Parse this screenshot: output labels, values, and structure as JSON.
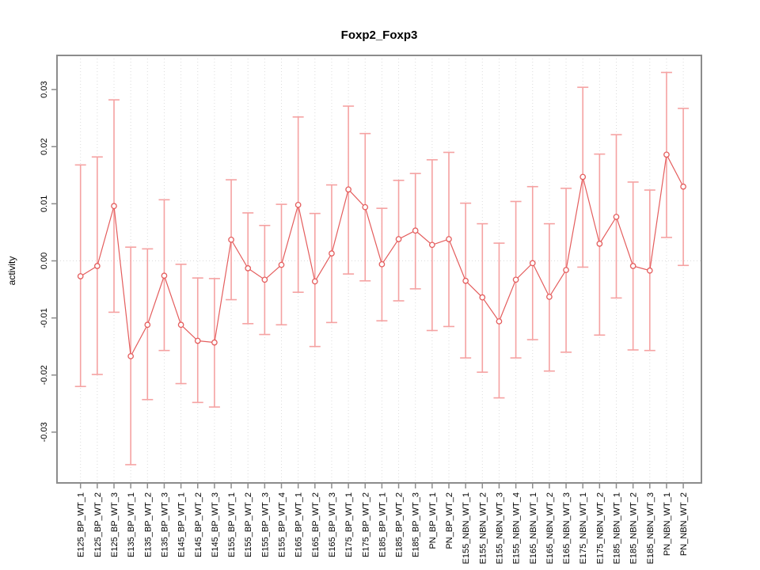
{
  "chart_data": {
    "type": "scatter",
    "title": "Foxp2_Foxp3",
    "xlabel": "",
    "ylabel": "activity",
    "legend_position": "none",
    "marker": "open-circle",
    "grid": {
      "vertical_dotted_per_category": true,
      "horizontal_dotted_zero_line": true,
      "frame_box": true
    },
    "categories": [
      "E125_BP_WT_1",
      "E125_BP_WT_2",
      "E125_BP_WT_3",
      "E135_BP_WT_1",
      "E135_BP_WT_2",
      "E135_BP_WT_3",
      "E145_BP_WT_1",
      "E145_BP_WT_2",
      "E145_BP_WT_3",
      "E155_BP_WT_1",
      "E155_BP_WT_2",
      "E155_BP_WT_3",
      "E155_BP_WT_4",
      "E165_BP_WT_1",
      "E165_BP_WT_2",
      "E165_BP_WT_3",
      "E175_BP_WT_1",
      "E175_BP_WT_2",
      "E185_BP_WT_1",
      "E185_BP_WT_2",
      "E185_BP_WT_3",
      "PN_BP_WT_1",
      "PN_BP_WT_2",
      "E155_NBN_WT_1",
      "E155_NBN_WT_2",
      "E155_NBN_WT_3",
      "E155_NBN_WT_4",
      "E165_NBN_WT_1",
      "E165_NBN_WT_2",
      "E165_NBN_WT_3",
      "E175_NBN_WT_1",
      "E175_NBN_WT_2",
      "E185_NBN_WT_1",
      "E185_NBN_WT_2",
      "E185_NBN_WT_3",
      "PN_NBN_WT_1",
      "PN_NBN_WT_2"
    ],
    "series": [
      {
        "name": "activity",
        "values": [
          -0.0027,
          -0.0009,
          0.0096,
          -0.0167,
          -0.0112,
          -0.0026,
          -0.0112,
          -0.014,
          -0.0143,
          0.0037,
          -0.0013,
          -0.0033,
          -0.0007,
          0.0098,
          -0.0036,
          0.0013,
          0.0125,
          0.0094,
          -0.0006,
          0.0038,
          0.0053,
          0.0028,
          0.0038,
          -0.0035,
          -0.0064,
          -0.0106,
          -0.0033,
          -0.0004,
          -0.0063,
          -0.0016,
          0.0147,
          0.003,
          0.0077,
          -0.0009,
          -0.0017,
          0.0186,
          0.013
        ],
        "error_high": [
          0.0168,
          0.0182,
          0.0282,
          0.0024,
          0.0021,
          0.0107,
          -0.0006,
          -0.003,
          -0.0031,
          0.0142,
          0.0084,
          0.0062,
          0.0099,
          0.0252,
          0.0083,
          0.0133,
          0.0271,
          0.0223,
          0.0092,
          0.0141,
          0.0153,
          0.0177,
          0.019,
          0.0101,
          0.0065,
          0.0031,
          0.0104,
          0.013,
          0.0065,
          0.0127,
          0.0304,
          0.0187,
          0.0221,
          0.0138,
          0.0124,
          0.033,
          0.0267
        ],
        "error_low": [
          -0.022,
          -0.0199,
          -0.009,
          -0.0357,
          -0.0243,
          -0.0157,
          -0.0215,
          -0.0248,
          -0.0256,
          -0.0068,
          -0.011,
          -0.0129,
          -0.0112,
          -0.0055,
          -0.015,
          -0.0108,
          -0.0023,
          -0.0035,
          -0.0105,
          -0.007,
          -0.0049,
          -0.0122,
          -0.0115,
          -0.017,
          -0.0195,
          -0.024,
          -0.017,
          -0.0138,
          -0.0193,
          -0.016,
          -0.0011,
          -0.013,
          -0.0065,
          -0.0156,
          -0.0157,
          0.0041,
          -0.0008
        ]
      }
    ],
    "yticks": [
      0.03,
      0.02,
      0.01,
      0.0,
      -0.01,
      -0.02,
      -0.03
    ],
    "ytick_labels": [
      "0.03",
      "0.02",
      "0.01",
      "0.00",
      "-0.01",
      "-0.02",
      "-0.03"
    ],
    "ylim": [
      -0.0388,
      0.0361
    ],
    "colors": {
      "line": "#e45d5d",
      "marker": "#e45d5d",
      "error_bar": "#f5a2a2",
      "frame": "#8c8c8c",
      "grid": "#dcdcdc",
      "text": "#000000",
      "background": "#ffffff"
    }
  }
}
